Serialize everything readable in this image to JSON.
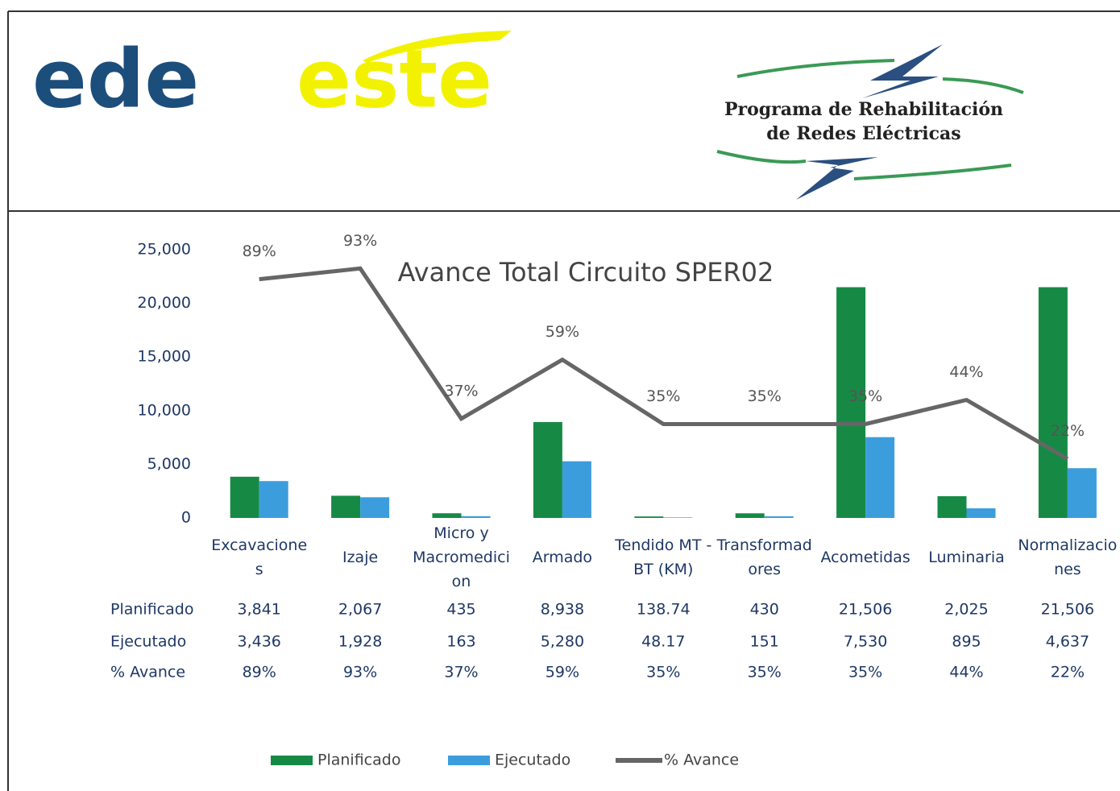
{
  "header": {
    "logo": [
      "ede",
      "este"
    ],
    "program": [
      "Programa de Rehabilitación",
      "de Redes Eléctricas"
    ]
  },
  "chart_data": {
    "type": "bar",
    "title": "Avance Total Circuito SPER02",
    "categories": [
      "Excavaciones",
      "Izaje",
      "Micro y Macromedicion",
      "Armado",
      "Tendido MT - BT (KM)",
      "Transformadores",
      "Acometidas",
      "Luminaria",
      "Normalizaciones"
    ],
    "series": [
      {
        "name": "Planificado",
        "color": "#168a45",
        "values": [
          3841,
          2067,
          435,
          8938,
          138.74,
          430,
          21506,
          2025,
          21506
        ],
        "value_labels": [
          "3,841",
          "2,067",
          "435",
          "8,938",
          "138.74",
          "430",
          "21,506",
          "2,025",
          "21,506"
        ]
      },
      {
        "name": "Ejecutado",
        "color": "#3c9ddc",
        "values": [
          3436,
          1928,
          163,
          5280,
          48.17,
          151,
          7530,
          895,
          4637
        ],
        "value_labels": [
          "3,436",
          "1,928",
          "163",
          "5,280",
          "48.17",
          "151",
          "7,530",
          "895",
          "4,637"
        ]
      },
      {
        "name": "% Avance",
        "type": "line",
        "axis": "y2",
        "color": "#666666",
        "values": [
          89,
          93,
          37,
          59,
          35,
          35,
          35,
          44,
          22
        ],
        "value_labels": [
          "89%",
          "93%",
          "37%",
          "59%",
          "35%",
          "35%",
          "35%",
          "44%",
          "22%"
        ]
      }
    ],
    "ylim": [
      0,
      25000
    ],
    "yticks": [
      0,
      {
        "value": 5000,
        "label": "5,000"
      },
      {
        "value": 10000,
        "label": "10,000"
      },
      {
        "value": 15000,
        "label": "15,000"
      },
      {
        "value": 20000,
        "label": "20,000"
      },
      {
        "value": 25000,
        "label": "25,000"
      }
    ],
    "y2lim": [
      0,
      100
    ],
    "legend": "bottom"
  }
}
